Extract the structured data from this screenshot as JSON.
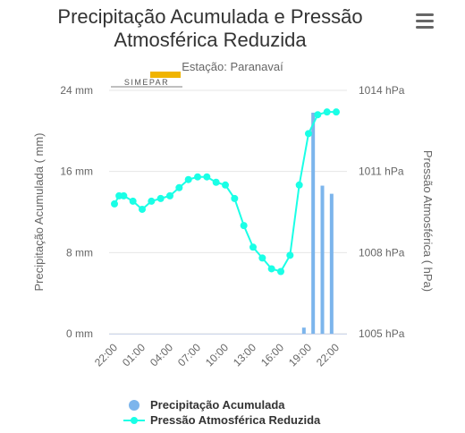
{
  "chart_data": {
    "type": "bar+line",
    "title": "Precipitação Acumulada e Pressão Atmosférica Reduzida",
    "title_lines": [
      "Precipitação Acumulada e Pressão",
      "Atmosférica Reduzida"
    ],
    "subtitle": "Estação: Paranavaí",
    "logo_text": "SIMEPAR",
    "x_tick_labels": [
      "22:00",
      "01:00",
      "04:00",
      "07:00",
      "10:00",
      "13:00",
      "16:00",
      "19:00",
      "22:00"
    ],
    "x_tick_hours_index": [
      0,
      3,
      6,
      9,
      12,
      15,
      18,
      21,
      24
    ],
    "y_left": {
      "label": "Precipitação Acumulada ( mm)",
      "unit": "mm",
      "range": [
        0,
        24
      ],
      "ticks": [
        0,
        8,
        16,
        24
      ],
      "tick_labels": [
        "0 mm",
        "8 mm",
        "16 mm",
        "24 mm"
      ]
    },
    "y_right": {
      "label": "Pressão Atmosférica ( hPa)",
      "unit": "hPa",
      "range": [
        1005,
        1014
      ],
      "ticks": [
        1005,
        1008,
        1011,
        1014
      ],
      "tick_labels": [
        "1005 hPa",
        "1008 hPa",
        "1011 hPa",
        "1014 hPa"
      ]
    },
    "grid": "horizontal",
    "series": [
      {
        "name": "Precipitação Acumulada",
        "type": "bar",
        "axis": "left",
        "color": "#7cb5ec",
        "x": [
          20.5,
          21.5,
          22.5,
          23.5
        ],
        "values": [
          0.6,
          21.8,
          14.6,
          13.8
        ]
      },
      {
        "name": "Pressão Atmosférica Reduzida",
        "type": "line",
        "axis": "right",
        "color": "#1affe6",
        "x": [
          0,
          0.5,
          1,
          2,
          3,
          4,
          5,
          6,
          7,
          8,
          9,
          10,
          11,
          12,
          13,
          14,
          15,
          16,
          17,
          18,
          19,
          20,
          21,
          22,
          23,
          24
        ],
        "values": [
          1009.8,
          1010.1,
          1010.1,
          1009.9,
          1009.6,
          1009.9,
          1010.0,
          1010.1,
          1010.4,
          1010.7,
          1010.8,
          1010.8,
          1010.6,
          1010.5,
          1010.0,
          1009.0,
          1008.2,
          1007.8,
          1007.4,
          1007.3,
          1007.9,
          1010.5,
          1012.4,
          1013.1,
          1013.2,
          1013.2
        ]
      }
    ],
    "legend_position": "bottom-center"
  }
}
